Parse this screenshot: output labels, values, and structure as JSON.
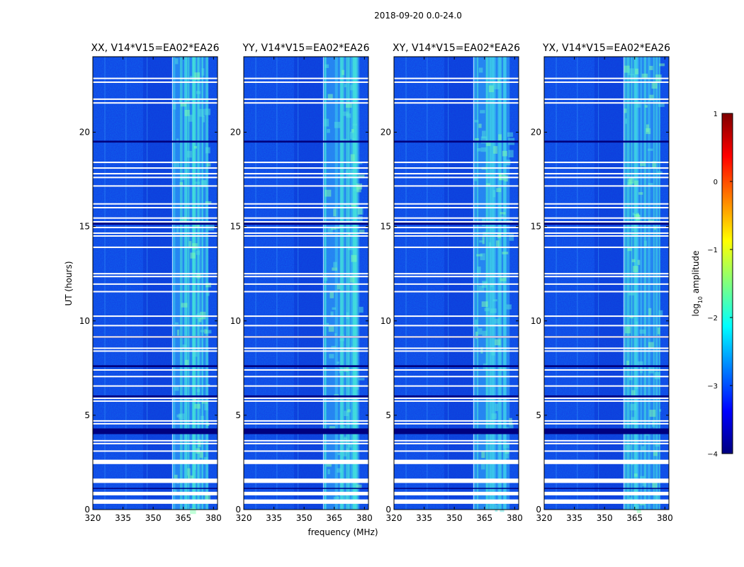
{
  "figure": {
    "suptitle": "2018-09-20 0.0-24.0",
    "xlabel": "frequency (MHz)",
    "ylabel": "UT (hours)"
  },
  "chart_data": {
    "type": "heatmap",
    "title": "2018-09-20 0.0-24.0",
    "xlabel": "frequency (MHz)",
    "ylabel": "UT (hours)",
    "xlim": [
      320,
      382
    ],
    "ylim": [
      0,
      24
    ],
    "xticks": [
      320,
      335,
      350,
      365,
      380
    ],
    "xtick_labels": [
      "320",
      "335",
      "350",
      "365",
      "380"
    ],
    "yticks": [
      0,
      5,
      10,
      15,
      20
    ],
    "ytick_labels": [
      "0",
      "5",
      "10",
      "15",
      "20"
    ],
    "panels": [
      {
        "title": "XX, V14*V15=EA02*EA26",
        "rfi_band_mhz": [
          359.5,
          377.5
        ]
      },
      {
        "title": "YY, V14*V15=EA02*EA26",
        "rfi_band_mhz": [
          359.5,
          377.5
        ]
      },
      {
        "title": "XY, V14*V15=EA02*EA26",
        "rfi_band_mhz": [
          359.5,
          377.5
        ]
      },
      {
        "title": "YX, V14*V15=EA02*EA26",
        "rfi_band_mhz": [
          359.5,
          377.5
        ]
      }
    ],
    "flagged_rows_ut_hours": [
      0.4,
      0.5,
      0.85,
      1.45,
      1.55,
      2.45,
      2.55,
      3.1,
      3.5,
      3.65,
      4.55,
      4.7,
      5.75,
      5.9,
      6.55,
      7.05,
      7.4,
      8.4,
      8.55,
      9.15,
      9.75,
      10.25,
      11.55,
      11.95,
      12.35,
      12.5,
      13.9,
      14.5,
      14.65,
      14.95,
      15.25,
      15.45,
      16.0,
      16.2,
      17.15,
      17.6,
      17.8,
      18.1,
      18.4,
      21.55,
      21.75,
      22.65,
      22.85
    ],
    "no_data_bands_ut_hours": [
      [
        4.0,
        4.3
      ],
      [
        19.45,
        19.55
      ],
      [
        9.1,
        9.2
      ],
      [
        5.95,
        6.05
      ],
      [
        7.55,
        7.65
      ],
      [
        15.1,
        15.2
      ],
      [
        1.1,
        1.15
      ]
    ],
    "colorbar": {
      "label": "log10 amplitude",
      "range": [
        -4,
        1
      ],
      "ticks": [
        1,
        0,
        -1,
        -2,
        -3,
        -4
      ],
      "tick_labels": [
        "1",
        "0",
        "−1",
        "−2",
        "−3",
        "−4"
      ],
      "colormap": "jet"
    }
  }
}
